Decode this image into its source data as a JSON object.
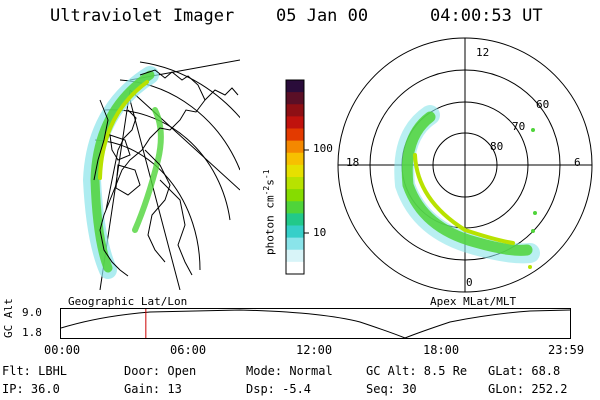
{
  "header": {
    "instrument": "Ultraviolet Imager",
    "date": "05 Jan 00",
    "time": "04:00:53 UT"
  },
  "left_panel": {
    "label": "Geographic Lat/Lon"
  },
  "right_panel": {
    "label": "Apex MLat/MLT",
    "mlt_labels": {
      "top": "12",
      "left": "18",
      "right": "6",
      "bottom": "0"
    },
    "lat_labels": [
      "60",
      "70",
      "80"
    ]
  },
  "colorbar": {
    "unit_label": "photon cm^-2 s^-1",
    "unit_base": "photon cm",
    "unit_exp1": "-2",
    "unit_s": "s",
    "unit_exp2": "-1",
    "ticks": [
      "100",
      "10"
    ],
    "colors": [
      "#2a0c3a",
      "#5a0f26",
      "#8e0f14",
      "#c0120d",
      "#e33a00",
      "#f48800",
      "#f7c000",
      "#e6e000",
      "#b8e200",
      "#86dc00",
      "#4fd43a",
      "#22c98a",
      "#36cfc9",
      "#8ae4ea",
      "#d8f4f8",
      "#ffffff"
    ]
  },
  "timeline": {
    "ylabel": "GC Alt",
    "yticks": [
      "9.0",
      "1.8"
    ],
    "xticks": [
      "00:00",
      "06:00",
      "12:00",
      "18:00",
      "23:59"
    ],
    "marker_time_hours": 4.0,
    "marker_color": "#cc0000"
  },
  "info": {
    "filter": "Flt: LBHL",
    "door": "Door: Open",
    "mode": "Mode: Normal",
    "gc_alt": "GC Alt: 8.5 Re",
    "glat": "GLat: 68.8",
    "ip": "IP: 36.0",
    "gain": "Gain: 13",
    "dsp": "Dsp:   -5.4",
    "seq": "Seq: 30",
    "glon": "GLon: 252.2"
  }
}
